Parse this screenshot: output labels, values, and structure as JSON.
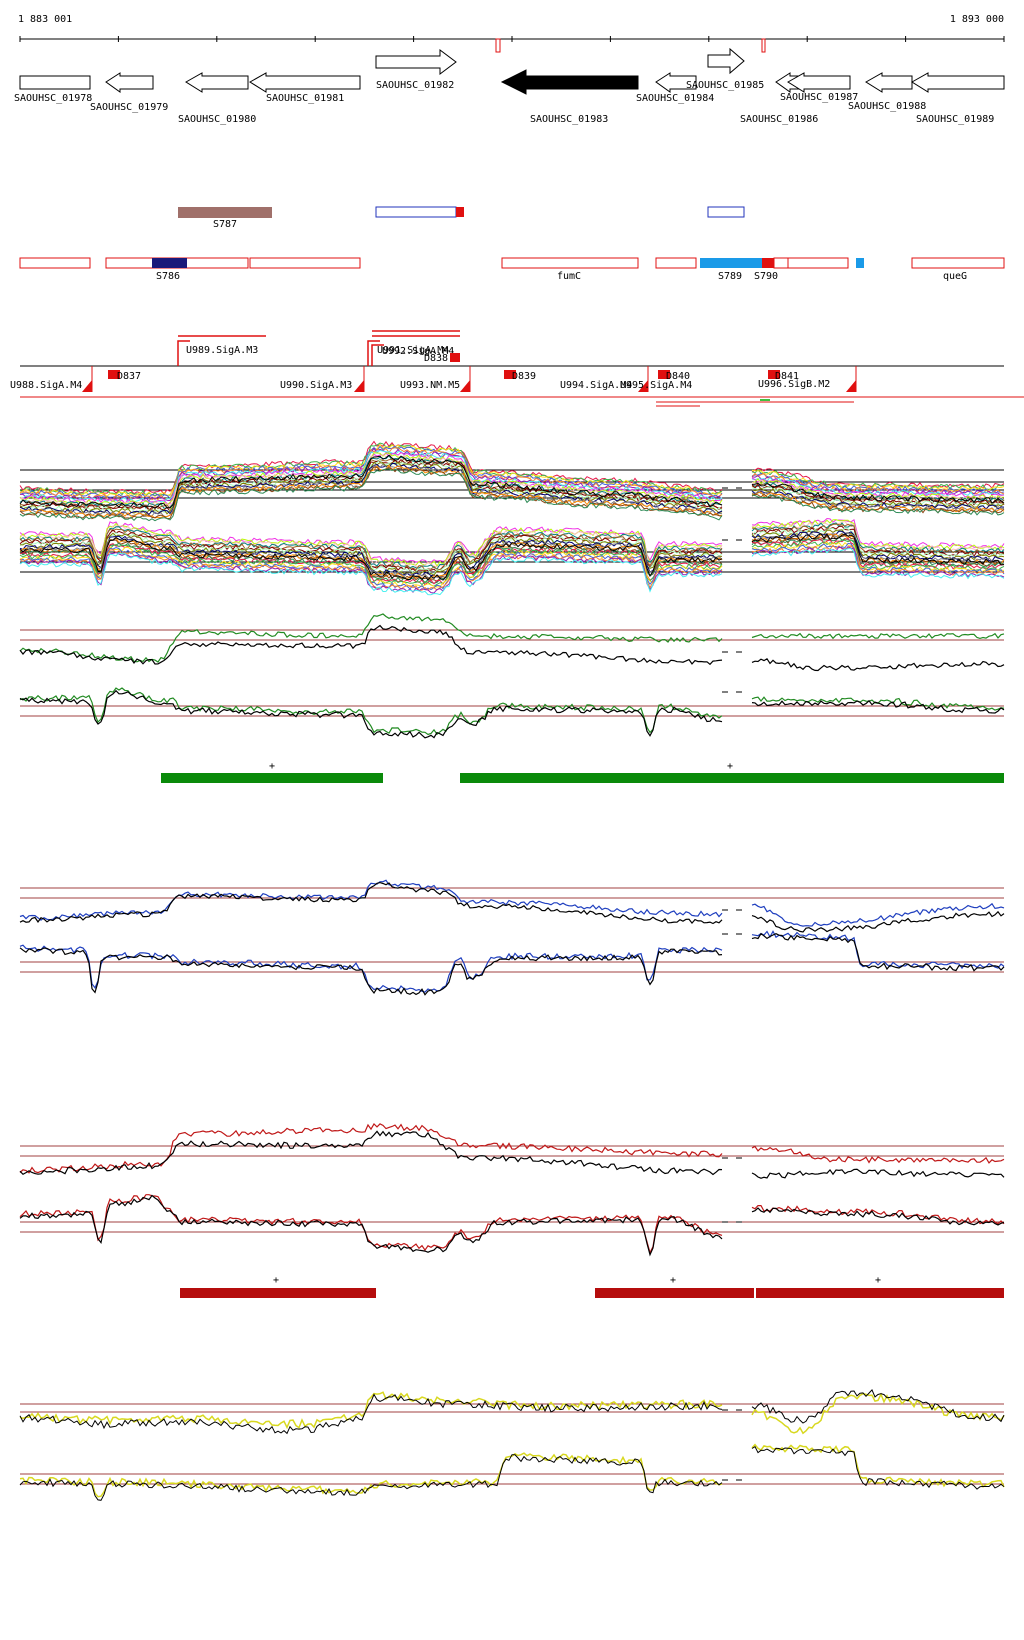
{
  "ruler": {
    "start_label": "1 883 001",
    "end_label": "1 893 000"
  },
  "genes": [
    {
      "label": "SAOUHSC_01978",
      "strand": "+",
      "filled": false
    },
    {
      "label": "SAOUHSC_01979",
      "strand": "-",
      "filled": false
    },
    {
      "label": "SAOUHSC_01980",
      "strand": "-",
      "filled": false
    },
    {
      "label": "SAOUHSC_01981",
      "strand": "-",
      "filled": false
    },
    {
      "label": "SAOUHSC_01982",
      "strand": "+",
      "filled": false
    },
    {
      "label": "SAOUHSC_01983",
      "strand": "-",
      "filled": true
    },
    {
      "label": "SAOUHSC_01984",
      "strand": "-",
      "filled": false
    },
    {
      "label": "SAOUHSC_01985",
      "strand": "+",
      "filled": false
    },
    {
      "label": "SAOUHSC_01986",
      "strand": "-",
      "filled": false
    },
    {
      "label": "SAOUHSC_01987",
      "strand": "-",
      "filled": false
    },
    {
      "label": "SAOUHSC_01988",
      "strand": "-",
      "filled": false
    },
    {
      "label": "SAOUHSC_01989",
      "strand": "-",
      "filled": false
    }
  ],
  "segments_upper": [
    {
      "label": "S787",
      "color": "#a0706a"
    },
    {
      "label": "",
      "color": "#2233bb"
    },
    {
      "label": "",
      "color": "#2233bb"
    }
  ],
  "segments_lower": [
    {
      "label": "S786",
      "color": "#1a1a7a"
    },
    {
      "label": "fumC",
      "color": "#e02020"
    },
    {
      "label": "S789",
      "color": "#1a9ae8"
    },
    {
      "label": "S790",
      "color": "#e02020"
    },
    {
      "label": "queG",
      "color": "#e02020"
    }
  ],
  "features_upper": [
    "U989.SigA.M3",
    "U991.SigA.M4",
    "U992.SigA.M4",
    "D838"
  ],
  "features_lower": [
    "U988.SigA.M4",
    "D837",
    "U990.SigA.M3",
    "U993.NM.M5",
    "D839",
    "U994.SigA.M4",
    "U995.SigA.M4",
    "D840",
    "D841",
    "U996.SigB.M2"
  ],
  "tracks": [
    {
      "color": "#228b22",
      "bar_label": "+"
    },
    {
      "color": "#1f3fbf"
    },
    {
      "color": "#c01818",
      "bar_label": "+"
    },
    {
      "color": "#d8d820"
    }
  ],
  "colors": {
    "guide": "#a04040",
    "green_bar": "#0a8a0a",
    "red_bar": "#b50d0d",
    "feature": "#e01010"
  },
  "labels": {
    "plus": "+"
  }
}
